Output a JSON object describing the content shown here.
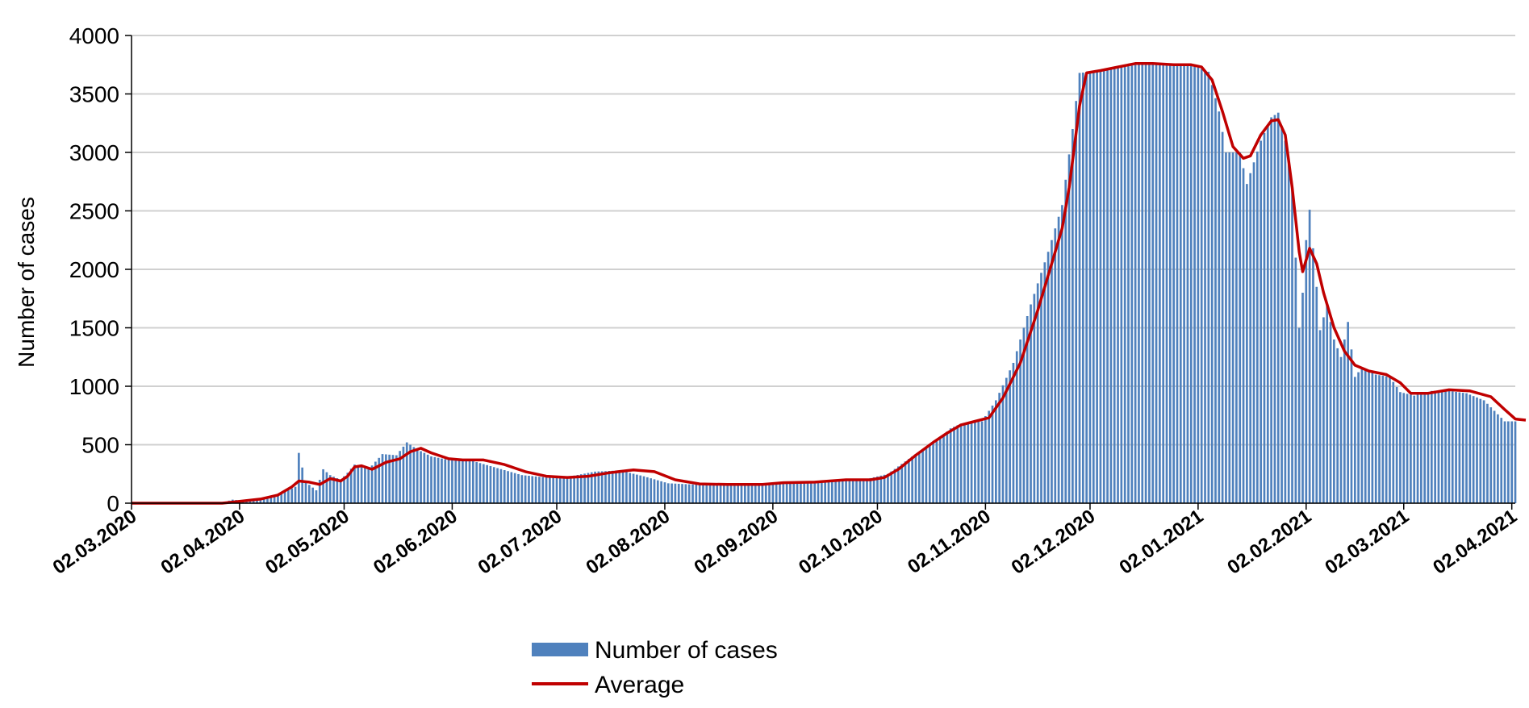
{
  "chart_data": {
    "type": "bar",
    "ylabel": "Number of cases",
    "xlabel": "",
    "ylim": [
      0,
      4000
    ],
    "yticks": [
      "0",
      "500",
      "1000",
      "1500",
      "2000",
      "2500",
      "3000",
      "3500",
      "4000"
    ],
    "xticks": [
      "02.03.2020",
      "02.04.2020",
      "02.05.2020",
      "02.06.2020",
      "02.07.2020",
      "02.08.2020",
      "02.09.2020",
      "02.10.2020",
      "02.11.2020",
      "02.12.2020",
      "02.01.2021",
      "02.02.2021",
      "02.03.2021",
      "02.04.2021"
    ],
    "x_range": [
      "2020-03-02",
      "2021-04-03"
    ],
    "grid": "horizontal",
    "legend_position": "bottom",
    "series": [
      {
        "name": "Number of cases",
        "kind": "bar",
        "color": "#4f81bd",
        "points": [
          [
            "2020-03-02",
            0
          ],
          [
            "2020-03-25",
            0
          ],
          [
            "2020-03-28",
            5
          ],
          [
            "2020-03-31",
            30
          ],
          [
            "2020-04-03",
            20
          ],
          [
            "2020-04-06",
            30
          ],
          [
            "2020-04-09",
            45
          ],
          [
            "2020-04-12",
            60
          ],
          [
            "2020-04-15",
            100
          ],
          [
            "2020-04-18",
            140
          ],
          [
            "2020-04-19",
            430
          ],
          [
            "2020-04-21",
            180
          ],
          [
            "2020-04-24",
            110
          ],
          [
            "2020-04-26",
            290
          ],
          [
            "2020-04-28",
            240
          ],
          [
            "2020-05-01",
            200
          ],
          [
            "2020-05-03",
            260
          ],
          [
            "2020-05-05",
            330
          ],
          [
            "2020-05-09",
            290
          ],
          [
            "2020-05-13",
            420
          ],
          [
            "2020-05-17",
            410
          ],
          [
            "2020-05-20",
            520
          ],
          [
            "2020-05-23",
            460
          ],
          [
            "2020-05-27",
            400
          ],
          [
            "2020-06-01",
            370
          ],
          [
            "2020-06-08",
            360
          ],
          [
            "2020-06-15",
            300
          ],
          [
            "2020-06-22",
            240
          ],
          [
            "2020-06-29",
            220
          ],
          [
            "2020-07-06",
            230
          ],
          [
            "2020-07-13",
            270
          ],
          [
            "2020-07-20",
            280
          ],
          [
            "2020-07-27",
            230
          ],
          [
            "2020-08-03",
            170
          ],
          [
            "2020-08-10",
            160
          ],
          [
            "2020-08-17",
            155
          ],
          [
            "2020-08-24",
            160
          ],
          [
            "2020-08-31",
            170
          ],
          [
            "2020-09-07",
            180
          ],
          [
            "2020-09-14",
            190
          ],
          [
            "2020-09-21",
            200
          ],
          [
            "2020-09-28",
            200
          ],
          [
            "2020-10-05",
            250
          ],
          [
            "2020-10-12",
            400
          ],
          [
            "2020-10-19",
            530
          ],
          [
            "2020-10-23",
            640
          ],
          [
            "2020-10-26",
            680
          ],
          [
            "2020-11-01",
            700
          ],
          [
            "2020-11-05",
            880
          ],
          [
            "2020-11-10",
            1200
          ],
          [
            "2020-11-15",
            1700
          ],
          [
            "2020-11-20",
            2150
          ],
          [
            "2020-11-24",
            2550
          ],
          [
            "2020-11-27",
            3200
          ],
          [
            "2020-11-29",
            3680
          ],
          [
            "2020-12-03",
            3690
          ],
          [
            "2020-12-10",
            3720
          ],
          [
            "2020-12-17",
            3760
          ],
          [
            "2020-12-24",
            3760
          ],
          [
            "2020-12-31",
            3750
          ],
          [
            "2021-01-05",
            3690
          ],
          [
            "2021-01-08",
            3350
          ],
          [
            "2021-01-10",
            3000
          ],
          [
            "2021-01-14",
            3000
          ],
          [
            "2021-01-16",
            2730
          ],
          [
            "2021-01-20",
            3100
          ],
          [
            "2021-01-23",
            3300
          ],
          [
            "2021-01-25",
            3340
          ],
          [
            "2021-01-27",
            3100
          ],
          [
            "2021-01-29",
            2700
          ],
          [
            "2021-01-30",
            2100
          ],
          [
            "2021-01-31",
            1500
          ],
          [
            "2021-02-01",
            1800
          ],
          [
            "2021-02-02",
            2250
          ],
          [
            "2021-02-03",
            2510
          ],
          [
            "2021-02-04",
            2180
          ],
          [
            "2021-02-05",
            1850
          ],
          [
            "2021-02-06",
            1480
          ],
          [
            "2021-02-08",
            1700
          ],
          [
            "2021-02-10",
            1400
          ],
          [
            "2021-02-12",
            1250
          ],
          [
            "2021-02-14",
            1550
          ],
          [
            "2021-02-16",
            1080
          ],
          [
            "2021-02-18",
            1160
          ],
          [
            "2021-02-22",
            1100
          ],
          [
            "2021-02-26",
            1080
          ],
          [
            "2021-03-01",
            950
          ],
          [
            "2021-03-05",
            920
          ],
          [
            "2021-03-10",
            960
          ],
          [
            "2021-03-15",
            960
          ],
          [
            "2021-03-20",
            940
          ],
          [
            "2021-03-25",
            880
          ],
          [
            "2021-03-28",
            790
          ],
          [
            "2021-03-31",
            700
          ],
          [
            "2021-04-03",
            700
          ]
        ]
      },
      {
        "name": "Average",
        "kind": "line",
        "color": "#c00000",
        "points": [
          [
            "2020-03-02",
            0
          ],
          [
            "2020-03-28",
            0
          ],
          [
            "2020-04-02",
            15
          ],
          [
            "2020-04-08",
            35
          ],
          [
            "2020-04-13",
            70
          ],
          [
            "2020-04-17",
            140
          ],
          [
            "2020-04-19",
            190
          ],
          [
            "2020-04-22",
            180
          ],
          [
            "2020-04-25",
            160
          ],
          [
            "2020-04-28",
            210
          ],
          [
            "2020-05-01",
            190
          ],
          [
            "2020-05-03",
            230
          ],
          [
            "2020-05-05",
            310
          ],
          [
            "2020-05-07",
            320
          ],
          [
            "2020-05-10",
            290
          ],
          [
            "2020-05-14",
            350
          ],
          [
            "2020-05-18",
            380
          ],
          [
            "2020-05-21",
            440
          ],
          [
            "2020-05-24",
            470
          ],
          [
            "2020-05-27",
            430
          ],
          [
            "2020-06-01",
            380
          ],
          [
            "2020-06-05",
            370
          ],
          [
            "2020-06-11",
            370
          ],
          [
            "2020-06-17",
            330
          ],
          [
            "2020-06-23",
            270
          ],
          [
            "2020-06-29",
            230
          ],
          [
            "2020-07-05",
            220
          ],
          [
            "2020-07-11",
            230
          ],
          [
            "2020-07-17",
            260
          ],
          [
            "2020-07-24",
            285
          ],
          [
            "2020-07-30",
            270
          ],
          [
            "2020-08-05",
            200
          ],
          [
            "2020-08-12",
            165
          ],
          [
            "2020-08-20",
            160
          ],
          [
            "2020-08-30",
            160
          ],
          [
            "2020-09-05",
            175
          ],
          [
            "2020-09-14",
            180
          ],
          [
            "2020-09-23",
            200
          ],
          [
            "2020-09-30",
            200
          ],
          [
            "2020-10-04",
            220
          ],
          [
            "2020-10-08",
            290
          ],
          [
            "2020-10-13",
            410
          ],
          [
            "2020-10-18",
            520
          ],
          [
            "2020-10-22",
            600
          ],
          [
            "2020-10-26",
            670
          ],
          [
            "2020-10-30",
            700
          ],
          [
            "2020-11-03",
            730
          ],
          [
            "2020-11-07",
            900
          ],
          [
            "2020-11-12",
            1200
          ],
          [
            "2020-11-17",
            1650
          ],
          [
            "2020-11-21",
            2050
          ],
          [
            "2020-11-24",
            2350
          ],
          [
            "2020-11-26",
            2700
          ],
          [
            "2020-11-29",
            3400
          ],
          [
            "2020-12-01",
            3680
          ],
          [
            "2020-12-05",
            3700
          ],
          [
            "2020-12-10",
            3730
          ],
          [
            "2020-12-15",
            3760
          ],
          [
            "2020-12-20",
            3760
          ],
          [
            "2020-12-26",
            3750
          ],
          [
            "2020-12-31",
            3750
          ],
          [
            "2021-01-03",
            3730
          ],
          [
            "2021-01-06",
            3620
          ],
          [
            "2021-01-09",
            3350
          ],
          [
            "2021-01-12",
            3050
          ],
          [
            "2021-01-15",
            2950
          ],
          [
            "2021-01-17",
            2970
          ],
          [
            "2021-01-20",
            3150
          ],
          [
            "2021-01-23",
            3270
          ],
          [
            "2021-01-25",
            3280
          ],
          [
            "2021-01-27",
            3150
          ],
          [
            "2021-01-29",
            2700
          ],
          [
            "2021-01-31",
            2150
          ],
          [
            "2021-02-01",
            1980
          ],
          [
            "2021-02-03",
            2180
          ],
          [
            "2021-02-05",
            2050
          ],
          [
            "2021-02-07",
            1800
          ],
          [
            "2021-02-10",
            1500
          ],
          [
            "2021-02-13",
            1300
          ],
          [
            "2021-02-16",
            1180
          ],
          [
            "2021-02-20",
            1130
          ],
          [
            "2021-02-25",
            1100
          ],
          [
            "2021-03-01",
            1030
          ],
          [
            "2021-03-04",
            940
          ],
          [
            "2021-03-09",
            940
          ],
          [
            "2021-03-15",
            970
          ],
          [
            "2021-03-21",
            960
          ],
          [
            "2021-03-27",
            910
          ],
          [
            "2021-03-31",
            800
          ],
          [
            "2021-04-03",
            720
          ],
          [
            "2021-04-06",
            710
          ]
        ]
      }
    ]
  }
}
